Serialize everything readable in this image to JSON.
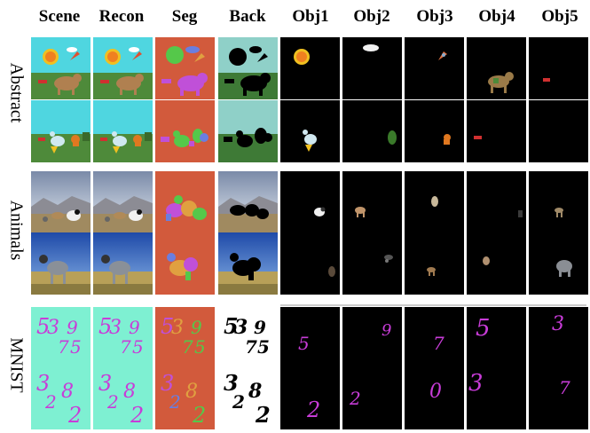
{
  "columns": [
    "Scene",
    "Recon",
    "Seg",
    "Back",
    "Obj1",
    "Obj2",
    "Obj3",
    "Obj4",
    "Obj5"
  ],
  "row_groups": [
    {
      "label": "Abstract"
    },
    {
      "label": "Animals"
    },
    {
      "label": "MNIST"
    }
  ],
  "mnist_digits": {
    "r1_obj1": "5",
    "r1_obj2": "9",
    "r1_obj3": "7",
    "r1_obj4": "5",
    "r1_obj5": "3",
    "r2_obj1": "2",
    "r2_obj2": "2",
    "r2_obj3": "0",
    "r2_obj4": "3",
    "r2_obj5": "7",
    "r1_scene": [
      "5",
      "3",
      "9",
      "7",
      "5"
    ],
    "r2_scene": [
      "3",
      "2",
      "8",
      "2"
    ]
  },
  "colors": {
    "seg_bg": "#d25a3c",
    "abstract_sky": "#4fd6e0",
    "abstract_grass": "#4e8a3a",
    "mnist_bg": "#7ef0d2",
    "digit": "#c83cd8",
    "seg_green": "#55c84a",
    "seg_purple": "#c050d8",
    "seg_blue": "#6a7ee0",
    "seg_orange": "#e0a040"
  }
}
